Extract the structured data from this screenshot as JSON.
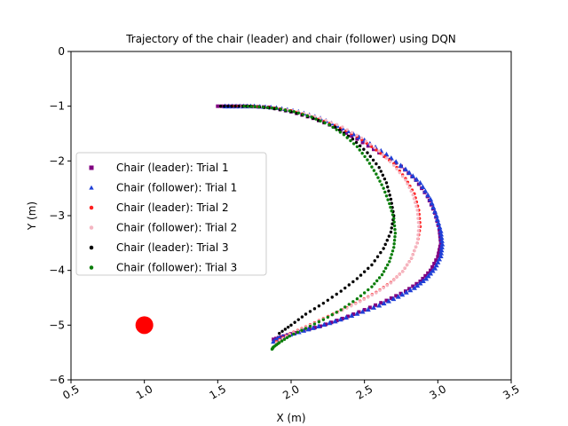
{
  "chart_data": {
    "type": "scatter",
    "title": "Trajectory of the chair (leader) and chair (follower) using DQN",
    "xlabel": "X (m)",
    "ylabel": "Y (m)",
    "xlim": [
      0.5,
      3.5
    ],
    "ylim": [
      -6,
      0
    ],
    "xticks": [
      "0.5",
      "1.0",
      "1.5",
      "2.0",
      "2.5",
      "3.0",
      "3.5"
    ],
    "yticks": [
      "0",
      "−1",
      "−2",
      "−3",
      "−4",
      "−5",
      "−6"
    ],
    "xtick_values": [
      0.5,
      1.0,
      1.5,
      2.0,
      2.5,
      3.0,
      3.5
    ],
    "ytick_values": [
      0,
      -1,
      -2,
      -3,
      -4,
      -5,
      -6
    ],
    "grid": false,
    "legend_position": "center-left",
    "target": {
      "x": 1.0,
      "y": -5.0,
      "color": "#ff0000"
    },
    "series": [
      {
        "name": "Chair (leader): Trial 1",
        "color": "#800080",
        "marker": "square",
        "x": [
          1.5,
          1.6,
          1.7,
          1.85,
          2.0,
          2.15,
          2.3,
          2.45,
          2.6,
          2.75,
          2.85,
          2.93,
          2.98,
          3.01,
          3.02,
          3.0,
          2.95,
          2.88,
          2.78,
          2.65,
          2.5,
          2.35,
          2.2,
          2.05,
          1.95,
          1.88
        ],
        "y": [
          -1.0,
          -1.0,
          -1.0,
          -1.02,
          -1.1,
          -1.22,
          -1.38,
          -1.6,
          -1.85,
          -2.1,
          -2.35,
          -2.65,
          -2.95,
          -3.25,
          -3.5,
          -3.75,
          -4.0,
          -4.2,
          -4.38,
          -4.55,
          -4.72,
          -4.88,
          -5.02,
          -5.12,
          -5.2,
          -5.26
        ]
      },
      {
        "name": "Chair (follower): Trial 1",
        "color": "#1f3fd6",
        "marker": "triangle",
        "x": [
          1.55,
          1.65,
          1.75,
          1.9,
          2.05,
          2.2,
          2.35,
          2.5,
          2.65,
          2.78,
          2.88,
          2.95,
          2.99,
          3.02,
          3.03,
          3.02,
          2.98,
          2.92,
          2.84,
          2.73,
          2.6,
          2.45,
          2.3,
          2.15,
          2.02,
          1.92,
          1.88
        ],
        "y": [
          -1.0,
          -1.0,
          -1.0,
          -1.03,
          -1.1,
          -1.22,
          -1.4,
          -1.62,
          -1.88,
          -2.15,
          -2.4,
          -2.7,
          -3.0,
          -3.28,
          -3.52,
          -3.74,
          -3.96,
          -4.15,
          -4.32,
          -4.48,
          -4.64,
          -4.79,
          -4.93,
          -5.05,
          -5.15,
          -5.23,
          -5.3
        ]
      },
      {
        "name": "Chair (leader): Trial 2",
        "color": "#ff2020",
        "marker": "circle",
        "x": [
          1.6,
          1.7,
          1.85,
          2.0,
          2.15,
          2.3,
          2.45,
          2.58,
          2.7,
          2.78,
          2.84,
          2.87,
          2.88,
          2.86,
          2.82,
          2.76,
          2.68,
          2.58,
          2.47,
          2.35,
          2.22,
          2.1,
          1.99,
          1.9
        ],
        "y": [
          -1.0,
          -1.0,
          -1.02,
          -1.08,
          -1.2,
          -1.35,
          -1.55,
          -1.8,
          -2.05,
          -2.32,
          -2.6,
          -2.9,
          -3.2,
          -3.5,
          -3.78,
          -4.02,
          -4.22,
          -4.4,
          -4.56,
          -4.72,
          -4.88,
          -5.03,
          -5.16,
          -5.3
        ]
      },
      {
        "name": "Chair (follower): Trial 2",
        "color": "#f4b6c2",
        "marker": "circle",
        "x": [
          1.62,
          1.75,
          1.9,
          2.05,
          2.2,
          2.35,
          2.48,
          2.6,
          2.7,
          2.78,
          2.83,
          2.86,
          2.87,
          2.86,
          2.82,
          2.76,
          2.68,
          2.58,
          2.47,
          2.35,
          2.22,
          2.1,
          1.99,
          1.9
        ],
        "y": [
          -1.0,
          -1.01,
          -1.04,
          -1.1,
          -1.22,
          -1.38,
          -1.58,
          -1.82,
          -2.08,
          -2.35,
          -2.62,
          -2.9,
          -3.2,
          -3.5,
          -3.78,
          -4.02,
          -4.23,
          -4.41,
          -4.57,
          -4.73,
          -4.89,
          -5.04,
          -5.17,
          -5.32
        ]
      },
      {
        "name": "Chair (leader): Trial 3",
        "color": "#000000",
        "marker": "circle",
        "x": [
          1.52,
          1.62,
          1.72,
          1.85,
          2.0,
          2.15,
          2.3,
          2.42,
          2.52,
          2.6,
          2.65,
          2.68,
          2.7,
          2.68,
          2.63,
          2.55,
          2.45,
          2.34,
          2.22,
          2.1,
          2.0,
          1.92
        ],
        "y": [
          -1.0,
          -1.0,
          -1.0,
          -1.03,
          -1.1,
          -1.22,
          -1.38,
          -1.6,
          -1.85,
          -2.12,
          -2.4,
          -2.7,
          -3.0,
          -3.3,
          -3.6,
          -3.9,
          -4.15,
          -4.38,
          -4.6,
          -4.8,
          -5.0,
          -5.15
        ]
      },
      {
        "name": "Chair (follower): Trial 3",
        "color": "#0a7d0a",
        "marker": "circle",
        "x": [
          1.68,
          1.78,
          1.9,
          2.02,
          2.14,
          2.26,
          2.36,
          2.45,
          2.52,
          2.58,
          2.63,
          2.67,
          2.7,
          2.71,
          2.7,
          2.67,
          2.62,
          2.55,
          2.45,
          2.34,
          2.22,
          2.1,
          1.99,
          1.92,
          1.88,
          1.87
        ],
        "y": [
          -1.0,
          -1.01,
          -1.04,
          -1.1,
          -1.2,
          -1.34,
          -1.52,
          -1.74,
          -1.98,
          -2.24,
          -2.5,
          -2.78,
          -3.05,
          -3.32,
          -3.58,
          -3.84,
          -4.08,
          -4.3,
          -4.52,
          -4.72,
          -4.9,
          -5.06,
          -5.2,
          -5.32,
          -5.4,
          -5.44
        ]
      }
    ]
  }
}
